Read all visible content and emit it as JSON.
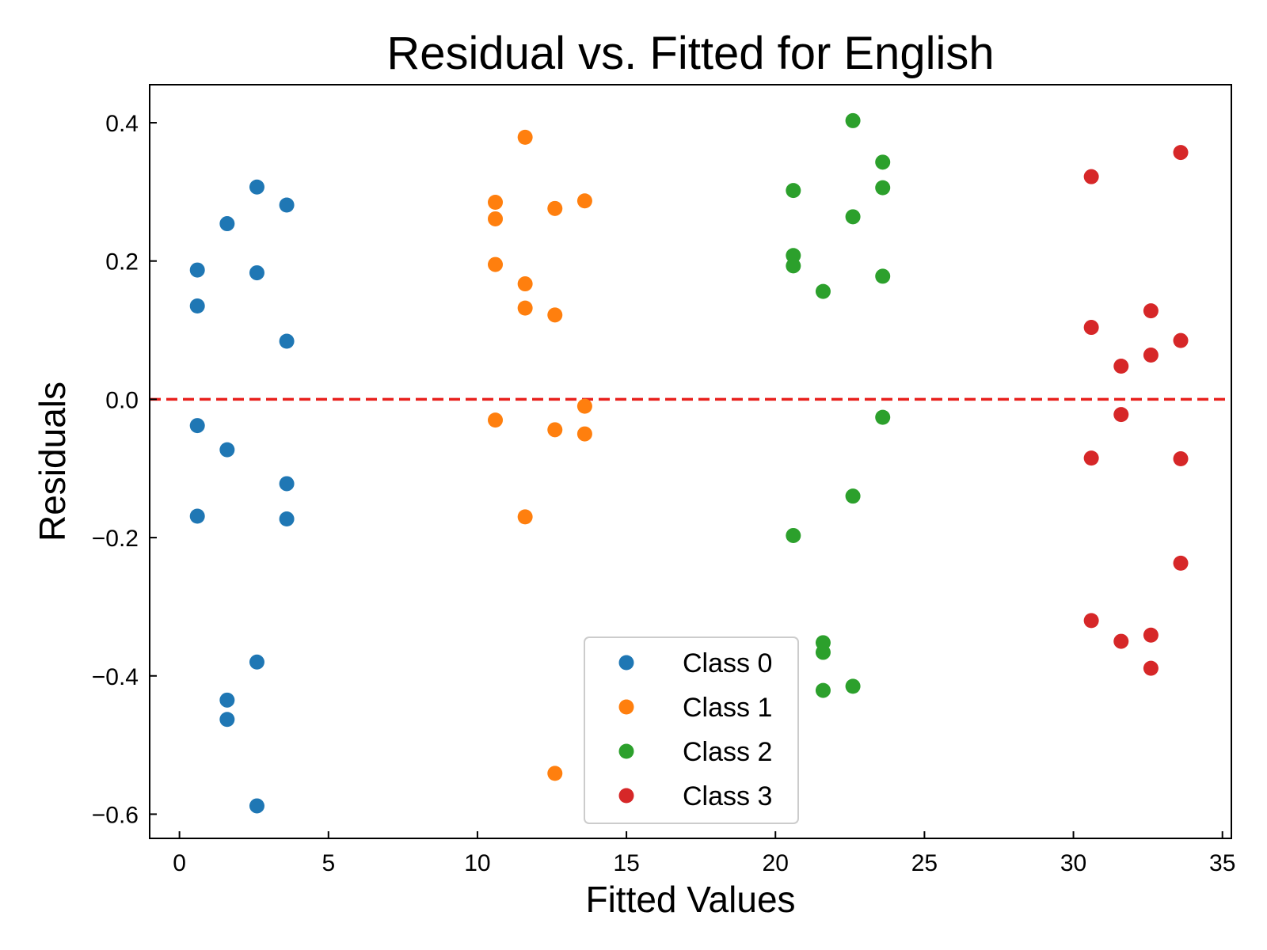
{
  "chart_data": {
    "type": "scatter",
    "title": "Residual vs. Fitted for English",
    "xlabel": "Fitted Values",
    "ylabel": "Residuals",
    "xlim": [
      -1,
      35.3
    ],
    "ylim": [
      -0.635,
      0.455
    ],
    "xticks": [
      0,
      5,
      10,
      15,
      20,
      25,
      30,
      35
    ],
    "xtick_labels": [
      "0",
      "5",
      "10",
      "15",
      "20",
      "25",
      "30",
      "35"
    ],
    "yticks": [
      -0.6,
      -0.4,
      -0.2,
      0.0,
      0.2,
      0.4
    ],
    "ytick_labels": [
      "−0.6",
      "−0.4",
      "−0.2",
      "0.0",
      "0.2",
      "0.4"
    ],
    "reference_line": {
      "y": 0.0,
      "style": "dashed",
      "color": "#e8201c"
    },
    "legend": {
      "position": "lower-center"
    },
    "grid": false,
    "series": [
      {
        "name": "Class 0",
        "color": "#1f77b4",
        "points": [
          [
            0.6,
            0.187
          ],
          [
            0.6,
            0.135
          ],
          [
            0.6,
            -0.038
          ],
          [
            0.6,
            -0.169
          ],
          [
            1.6,
            0.254
          ],
          [
            1.6,
            -0.073
          ],
          [
            1.6,
            -0.435
          ],
          [
            1.6,
            -0.463
          ],
          [
            2.6,
            0.307
          ],
          [
            2.6,
            0.183
          ],
          [
            2.6,
            -0.38
          ],
          [
            2.6,
            -0.588
          ],
          [
            3.6,
            0.281
          ],
          [
            3.6,
            0.084
          ],
          [
            3.6,
            -0.122
          ],
          [
            3.6,
            -0.173
          ]
        ]
      },
      {
        "name": "Class 1",
        "color": "#ff7f0e",
        "points": [
          [
            10.6,
            0.285
          ],
          [
            10.6,
            0.261
          ],
          [
            10.6,
            0.195
          ],
          [
            10.6,
            -0.03
          ],
          [
            11.6,
            0.379
          ],
          [
            11.6,
            0.167
          ],
          [
            11.6,
            0.132
          ],
          [
            11.6,
            -0.17
          ],
          [
            12.6,
            0.276
          ],
          [
            12.6,
            0.122
          ],
          [
            12.6,
            -0.044
          ],
          [
            12.6,
            -0.541
          ],
          [
            13.6,
            0.287
          ],
          [
            13.6,
            -0.01
          ],
          [
            13.6,
            -0.05
          ]
        ]
      },
      {
        "name": "Class 2",
        "color": "#2ca02c",
        "points": [
          [
            20.6,
            0.302
          ],
          [
            20.6,
            0.208
          ],
          [
            20.6,
            0.193
          ],
          [
            20.6,
            -0.197
          ],
          [
            21.6,
            0.156
          ],
          [
            21.6,
            -0.352
          ],
          [
            21.6,
            -0.366
          ],
          [
            21.6,
            -0.421
          ],
          [
            22.6,
            0.403
          ],
          [
            22.6,
            0.264
          ],
          [
            22.6,
            -0.14
          ],
          [
            22.6,
            -0.415
          ],
          [
            23.6,
            0.343
          ],
          [
            23.6,
            0.306
          ],
          [
            23.6,
            0.178
          ],
          [
            23.6,
            -0.026
          ]
        ]
      },
      {
        "name": "Class 3",
        "color": "#d62728",
        "points": [
          [
            30.6,
            0.322
          ],
          [
            30.6,
            0.104
          ],
          [
            30.6,
            -0.085
          ],
          [
            30.6,
            -0.32
          ],
          [
            31.6,
            0.048
          ],
          [
            31.6,
            -0.022
          ],
          [
            31.6,
            -0.35
          ],
          [
            32.6,
            0.128
          ],
          [
            32.6,
            0.064
          ],
          [
            32.6,
            -0.341
          ],
          [
            32.6,
            -0.389
          ],
          [
            33.6,
            0.357
          ],
          [
            33.6,
            0.085
          ],
          [
            33.6,
            -0.086
          ],
          [
            33.6,
            -0.237
          ]
        ]
      }
    ]
  }
}
